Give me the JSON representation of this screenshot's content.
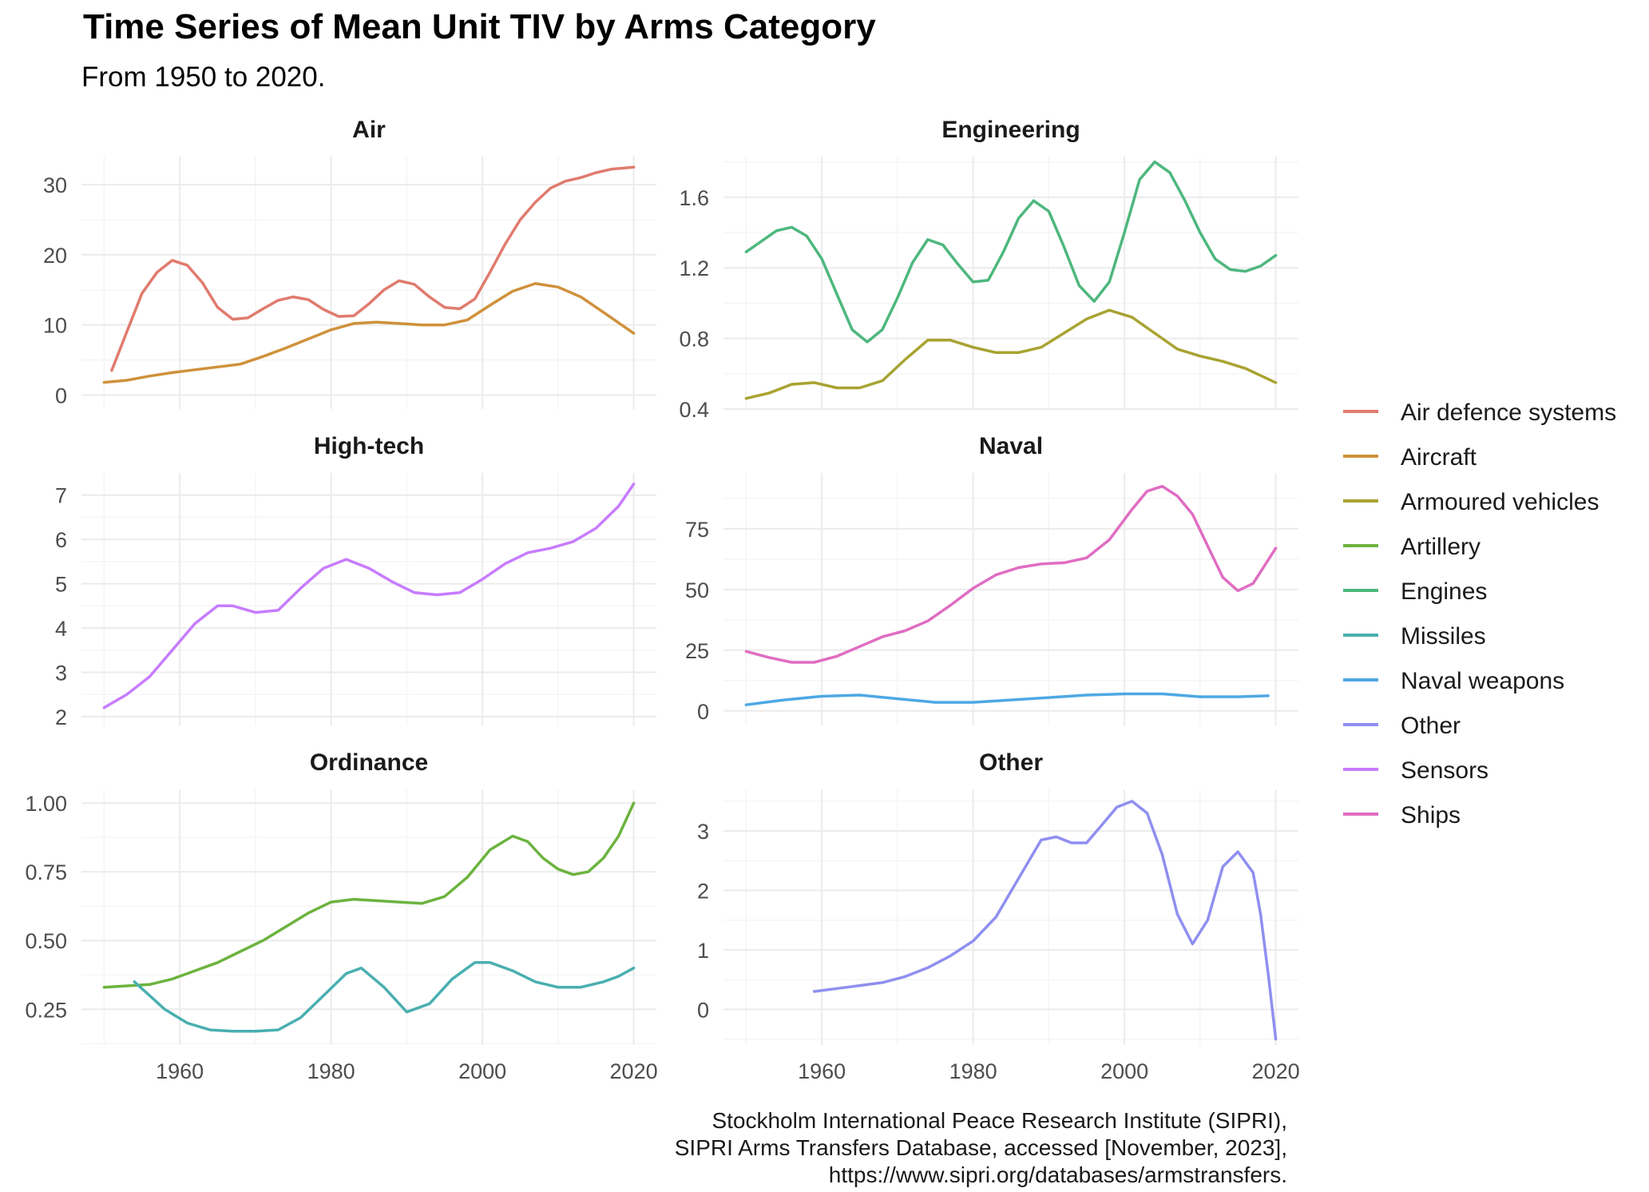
{
  "chart_data": {
    "type": "line",
    "title": "Time Series of Mean Unit TIV by Arms Category",
    "subtitle": "From 1950 to 2020.",
    "caption": [
      "Stockholm International Peace Research Institute (SIPRI),",
      "SIPRI Arms Transfers Database, accessed [November, 2023],",
      "https://www.sipri.org/databases/armstransfers."
    ],
    "xlabel": "",
    "ylabel": "",
    "x_ticks": [
      1960,
      1980,
      2000,
      2020
    ],
    "xlim": [
      1947,
      2023
    ],
    "grid": true,
    "legend_position": "right",
    "legend": [
      {
        "name": "Air defence systems",
        "color": "#E07B6E"
      },
      {
        "name": "Aircraft",
        "color": "#CF913B"
      },
      {
        "name": "Armoured vehicles",
        "color": "#A8A331"
      },
      {
        "name": "Artillery",
        "color": "#6CB33F"
      },
      {
        "name": "Engines",
        "color": "#4DB77D"
      },
      {
        "name": "Missiles",
        "color": "#4AAFB0"
      },
      {
        "name": "Naval weapons",
        "color": "#4EA8E4"
      },
      {
        "name": "Other",
        "color": "#8F8FF0"
      },
      {
        "name": "Sensors",
        "color": "#C77CFF"
      },
      {
        "name": "Ships",
        "color": "#E06DC2"
      }
    ],
    "panels": [
      {
        "title": "Air",
        "ylim": [
          -2,
          34
        ],
        "y_ticks": [
          0,
          10,
          20,
          30
        ],
        "y_tick_labels": [
          "0",
          "10",
          "20",
          "30"
        ],
        "series": [
          {
            "name": "Air defence systems",
            "x": [
              1951,
              1953,
              1955,
              1957,
              1959,
              1961,
              1963,
              1965,
              1967,
              1969,
              1971,
              1973,
              1975,
              1977,
              1979,
              1981,
              1983,
              1985,
              1987,
              1989,
              1991,
              1993,
              1995,
              1997,
              1999,
              2001,
              2003,
              2005,
              2007,
              2009,
              2011,
              2013,
              2015,
              2017,
              2020
            ],
            "y": [
              3.5,
              9,
              14.5,
              17.5,
              19.2,
              18.5,
              16,
              12.5,
              10.8,
              11,
              12.3,
              13.5,
              14,
              13.6,
              12.2,
              11.2,
              11.3,
              13,
              15,
              16.3,
              15.8,
              14,
              12.5,
              12.3,
              13.7,
              17.5,
              21.5,
              25,
              27.5,
              29.5,
              30.5,
              31,
              31.7,
              32.2,
              32.5
            ]
          },
          {
            "name": "Aircraft",
            "x": [
              1950,
              1953,
              1956,
              1959,
              1962,
              1965,
              1968,
              1971,
              1974,
              1977,
              1980,
              1983,
              1986,
              1989,
              1992,
              1995,
              1998,
              2001,
              2004,
              2007,
              2010,
              2013,
              2016,
              2020
            ],
            "y": [
              1.8,
              2.1,
              2.7,
              3.2,
              3.6,
              4,
              4.4,
              5.5,
              6.7,
              8,
              9.3,
              10.2,
              10.4,
              10.2,
              10,
              10,
              10.7,
              12.8,
              14.8,
              15.9,
              15.4,
              14,
              11.8,
              8.8
            ]
          }
        ]
      },
      {
        "title": "Engineering",
        "ylim": [
          0.4,
          1.83
        ],
        "y_ticks": [
          0.4,
          0.8,
          1.2,
          1.6
        ],
        "y_tick_labels": [
          "0.4",
          "0.8",
          "1.2",
          "1.6"
        ],
        "series": [
          {
            "name": "Engines",
            "x": [
              1950,
              1952,
              1954,
              1956,
              1958,
              1960,
              1962,
              1964,
              1966,
              1968,
              1970,
              1972,
              1974,
              1976,
              1978,
              1980,
              1982,
              1984,
              1986,
              1988,
              1990,
              1992,
              1994,
              1996,
              1998,
              2000,
              2002,
              2004,
              2006,
              2008,
              2010,
              2012,
              2014,
              2016,
              2018,
              2020
            ],
            "y": [
              1.29,
              1.35,
              1.41,
              1.43,
              1.38,
              1.25,
              1.05,
              0.85,
              0.78,
              0.85,
              1.03,
              1.23,
              1.36,
              1.33,
              1.22,
              1.12,
              1.13,
              1.29,
              1.48,
              1.58,
              1.52,
              1.32,
              1.1,
              1.01,
              1.12,
              1.4,
              1.7,
              1.8,
              1.74,
              1.58,
              1.4,
              1.25,
              1.19,
              1.18,
              1.21,
              1.27
            ]
          },
          {
            "name": "Armoured vehicles",
            "x": [
              1950,
              1953,
              1956,
              1959,
              1962,
              1965,
              1968,
              1971,
              1974,
              1977,
              1980,
              1983,
              1986,
              1989,
              1992,
              1995,
              1998,
              2001,
              2004,
              2007,
              2010,
              2013,
              2016,
              2020
            ],
            "y": [
              0.46,
              0.49,
              0.54,
              0.55,
              0.52,
              0.52,
              0.56,
              0.68,
              0.79,
              0.79,
              0.75,
              0.72,
              0.72,
              0.75,
              0.83,
              0.91,
              0.96,
              0.92,
              0.83,
              0.74,
              0.7,
              0.67,
              0.63,
              0.55
            ]
          }
        ]
      },
      {
        "title": "High-tech",
        "ylim": [
          1.8,
          7.5
        ],
        "y_ticks": [
          2,
          3,
          4,
          5,
          6,
          7
        ],
        "y_tick_labels": [
          "2",
          "3",
          "4",
          "5",
          "6",
          "7"
        ],
        "series": [
          {
            "name": "Sensors",
            "x": [
              1950,
              1953,
              1956,
              1959,
              1962,
              1965,
              1967,
              1970,
              1973,
              1976,
              1979,
              1982,
              1985,
              1988,
              1991,
              1994,
              1997,
              2000,
              2003,
              2006,
              2009,
              2012,
              2015,
              2018,
              2020
            ],
            "y": [
              2.2,
              2.5,
              2.9,
              3.5,
              4.1,
              4.5,
              4.5,
              4.35,
              4.4,
              4.9,
              5.35,
              5.55,
              5.35,
              5.05,
              4.8,
              4.75,
              4.8,
              5.1,
              5.45,
              5.7,
              5.8,
              5.95,
              6.25,
              6.75,
              7.25
            ]
          }
        ]
      },
      {
        "title": "Naval",
        "ylim": [
          -6,
          98
        ],
        "y_ticks": [
          0,
          25,
          50,
          75
        ],
        "y_tick_labels": [
          "0",
          "25",
          "50",
          "75"
        ],
        "series": [
          {
            "name": "Ships",
            "x": [
              1950,
              1953,
              1956,
              1959,
              1962,
              1965,
              1968,
              1971,
              1974,
              1977,
              1980,
              1983,
              1986,
              1989,
              1992,
              1995,
              1998,
              2001,
              2003,
              2005,
              2007,
              2009,
              2011,
              2013,
              2015,
              2017,
              2020
            ],
            "y": [
              24.5,
              22,
              20,
              20,
              22.5,
              26.5,
              30.5,
              33,
              37,
              43.5,
              50.5,
              56,
              59,
              60.5,
              61,
              63,
              70.5,
              83,
              90.5,
              92.5,
              88.5,
              81,
              68,
              55,
              49.5,
              52.5,
              67
            ]
          },
          {
            "name": "Naval weapons",
            "x": [
              1950,
              1955,
              1960,
              1965,
              1970,
              1975,
              1980,
              1985,
              1990,
              1995,
              2000,
              2005,
              2010,
              2015,
              2019
            ],
            "y": [
              2.5,
              4.5,
              6,
              6.5,
              5,
              3.5,
              3.5,
              4.5,
              5.5,
              6.5,
              7,
              7,
              5.8,
              5.8,
              6.2
            ]
          }
        ]
      },
      {
        "title": "Ordinance",
        "ylim": [
          0.12,
          1.05
        ],
        "y_ticks": [
          0.25,
          0.5,
          0.75,
          1.0
        ],
        "y_tick_labels": [
          "0.25",
          "0.50",
          "0.75",
          "1.00"
        ],
        "series": [
          {
            "name": "Artillery",
            "x": [
              1950,
              1953,
              1956,
              1959,
              1962,
              1965,
              1968,
              1971,
              1974,
              1977,
              1980,
              1983,
              1986,
              1989,
              1992,
              1995,
              1998,
              2001,
              2004,
              2006,
              2008,
              2010,
              2012,
              2014,
              2016,
              2018,
              2020
            ],
            "y": [
              0.33,
              0.335,
              0.34,
              0.36,
              0.39,
              0.42,
              0.46,
              0.5,
              0.55,
              0.6,
              0.64,
              0.65,
              0.645,
              0.64,
              0.635,
              0.66,
              0.73,
              0.83,
              0.88,
              0.86,
              0.8,
              0.76,
              0.74,
              0.75,
              0.8,
              0.88,
              1.0
            ]
          },
          {
            "name": "Missiles",
            "x": [
              1954,
              1956,
              1958,
              1961,
              1964,
              1967,
              1970,
              1973,
              1976,
              1979,
              1982,
              1984,
              1987,
              1990,
              1993,
              1996,
              1999,
              2001,
              2004,
              2007,
              2010,
              2013,
              2016,
              2018,
              2020
            ],
            "y": [
              0.35,
              0.3,
              0.25,
              0.2,
              0.175,
              0.17,
              0.17,
              0.175,
              0.22,
              0.3,
              0.38,
              0.4,
              0.33,
              0.24,
              0.27,
              0.36,
              0.42,
              0.42,
              0.39,
              0.35,
              0.33,
              0.33,
              0.35,
              0.37,
              0.4
            ]
          }
        ]
      },
      {
        "title": "Other",
        "ylim": [
          -0.6,
          3.7
        ],
        "y_ticks": [
          0,
          1,
          2,
          3
        ],
        "y_tick_labels": [
          "0",
          "1",
          "2",
          "3"
        ],
        "series": [
          {
            "name": "Other",
            "x": [
              1959,
              1962,
              1965,
              1968,
              1971,
              1974,
              1977,
              1980,
              1983,
              1986,
              1989,
              1991,
              1993,
              1995,
              1997,
              1999,
              2001,
              2003,
              2005,
              2007,
              2009,
              2011,
              2013,
              2015,
              2017,
              2018,
              2019,
              2020
            ],
            "y": [
              0.3,
              0.35,
              0.4,
              0.45,
              0.55,
              0.7,
              0.9,
              1.15,
              1.55,
              2.2,
              2.85,
              2.9,
              2.8,
              2.8,
              3.1,
              3.4,
              3.5,
              3.3,
              2.6,
              1.6,
              1.1,
              1.5,
              2.4,
              2.65,
              2.3,
              1.6,
              0.6,
              -0.5
            ]
          }
        ]
      }
    ]
  }
}
